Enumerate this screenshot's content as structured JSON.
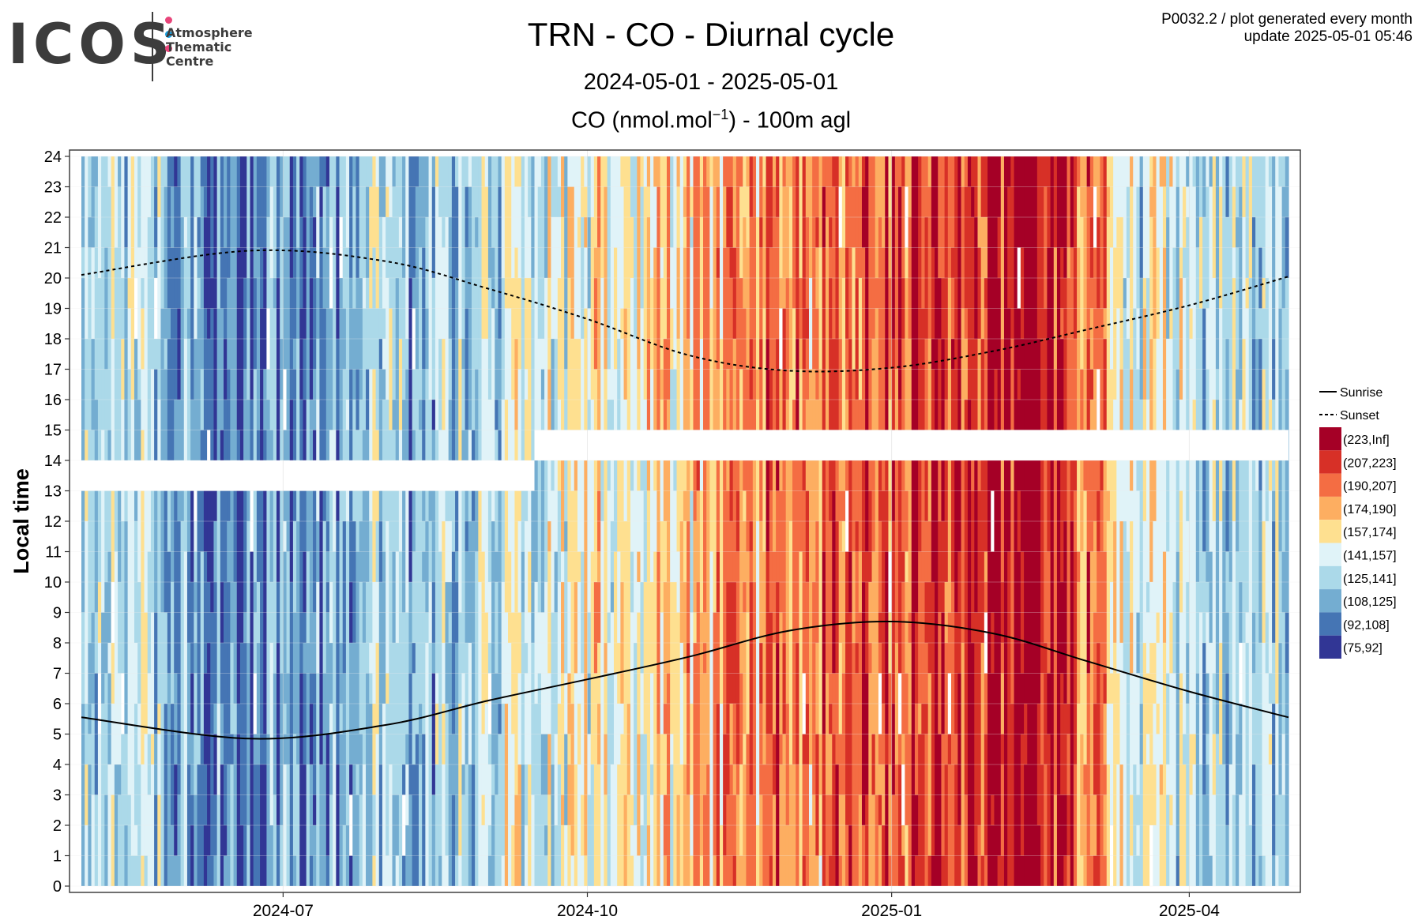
{
  "logo": {
    "text": "ICOS",
    "subtitle": "Atmosphere\nThematic\nCentre",
    "dot_colors": [
      "#e8457a",
      "#1aa0e0",
      "#e8457a"
    ]
  },
  "header": {
    "title": "TRN - CO - Diurnal cycle",
    "date_range": "2024-05-01 - 2025-05-01",
    "subtitle_main": "CO (nmol.mol",
    "subtitle_sup": "−1",
    "subtitle_tail": ") - 100m agl",
    "meta_line1": "P0032.2 / plot generated every month",
    "meta_line2": "update  2025-05-01 05:46"
  },
  "chart_data": {
    "type": "heatmap",
    "title": "TRN - CO - Diurnal cycle",
    "xlabel": "",
    "ylabel": "Local time",
    "x_range": [
      "2024-05-01",
      "2025-05-01"
    ],
    "x_ticks": [
      "2024-07",
      "2024-10",
      "2025-01",
      "2025-04"
    ],
    "x_tick_dates": [
      "2024-07-01",
      "2024-10-01",
      "2025-01-01",
      "2025-04-01"
    ],
    "y_range": [
      0,
      24
    ],
    "y_ticks": [
      0,
      1,
      2,
      3,
      4,
      5,
      6,
      7,
      8,
      9,
      10,
      11,
      12,
      13,
      14,
      15,
      16,
      17,
      18,
      19,
      20,
      21,
      22,
      23,
      24
    ],
    "value_classes": [
      {
        "label": "(223,Inf]",
        "color": "#a50026"
      },
      {
        "label": "(207,223]",
        "color": "#d73027"
      },
      {
        "label": "(190,207]",
        "color": "#f46d43"
      },
      {
        "label": "(174,190]",
        "color": "#fdae61"
      },
      {
        "label": "(157,174]",
        "color": "#fee090"
      },
      {
        "label": "(141,157]",
        "color": "#e0f3f8"
      },
      {
        "label": "(125,141]",
        "color": "#abd9e9"
      },
      {
        "label": "(108,125]",
        "color": "#74add1"
      },
      {
        "label": "(92,108]",
        "color": "#4575b4"
      },
      {
        "label": "(75,92]",
        "color": "#313695"
      }
    ],
    "monthly_median_class": [
      {
        "month": "2024-05",
        "class": "(125,141]"
      },
      {
        "month": "2024-06",
        "class": "(92,108]"
      },
      {
        "month": "2024-07",
        "class": "(108,125]"
      },
      {
        "month": "2024-08",
        "class": "(125,141]"
      },
      {
        "month": "2024-09",
        "class": "(141,157]"
      },
      {
        "month": "2024-10",
        "class": "(157,174]"
      },
      {
        "month": "2024-11",
        "class": "(174,190]"
      },
      {
        "month": "2024-12",
        "class": "(190,207]"
      },
      {
        "month": "2025-01",
        "class": "(207,223]"
      },
      {
        "month": "2025-02",
        "class": "(223,Inf]"
      },
      {
        "month": "2025-03",
        "class": "(141,157]"
      },
      {
        "month": "2025-04",
        "class": "(125,141]"
      }
    ],
    "missing_hours": [
      {
        "from": "2024-05-01",
        "to": "2024-09-15",
        "hours": [
          13,
          14
        ]
      },
      {
        "from": "2024-09-15",
        "to": "2025-05-01",
        "hours": [
          14,
          15
        ]
      }
    ],
    "sun_lines": [
      {
        "name": "Sunrise",
        "style": "solid",
        "points": [
          [
            "2024-05-01",
            5.55
          ],
          [
            "2024-06-21",
            4.85
          ],
          [
            "2024-08-01",
            5.3
          ],
          [
            "2024-09-01",
            6.1
          ],
          [
            "2024-10-01",
            6.8
          ],
          [
            "2024-11-01",
            7.55
          ],
          [
            "2024-12-01",
            8.4
          ],
          [
            "2025-01-01",
            8.7
          ],
          [
            "2025-02-01",
            8.3
          ],
          [
            "2025-03-01",
            7.4
          ],
          [
            "2025-04-01",
            6.4
          ],
          [
            "2025-05-01",
            5.55
          ]
        ]
      },
      {
        "name": "Sunset",
        "style": "dashed",
        "points": [
          [
            "2024-05-01",
            20.1
          ],
          [
            "2024-06-21",
            20.9
          ],
          [
            "2024-08-01",
            20.55
          ],
          [
            "2024-09-01",
            19.65
          ],
          [
            "2024-10-01",
            18.65
          ],
          [
            "2024-11-01",
            17.45
          ],
          [
            "2024-12-01",
            16.95
          ],
          [
            "2025-01-01",
            17.05
          ],
          [
            "2025-02-01",
            17.6
          ],
          [
            "2025-03-01",
            18.3
          ],
          [
            "2025-04-01",
            19.1
          ],
          [
            "2025-05-01",
            20.05
          ]
        ]
      }
    ],
    "legend_lines": [
      "Sunrise",
      "Sunset"
    ],
    "legend_position": "right",
    "grid": true
  }
}
